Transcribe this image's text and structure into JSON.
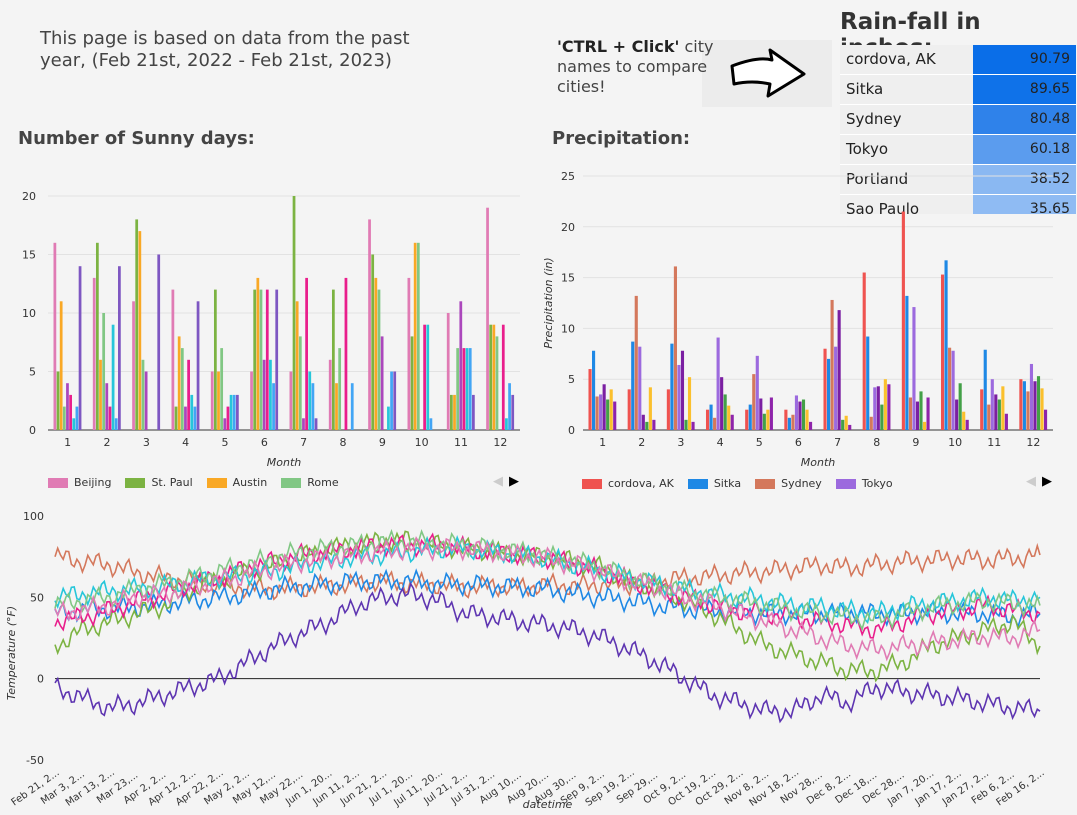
{
  "intro_text": "This page is based on data from the past year, (Feb 21st, 2022 - Feb 21st, 2023)",
  "hint": {
    "bold": "'CTRL + Click'",
    "rest": " city names to compare cities!"
  },
  "rainfall": {
    "title": "Rain-fall in inches:",
    "rows": [
      {
        "city": "cordova, AK",
        "value": "90.79",
        "color": "#0a6ee8"
      },
      {
        "city": "Sitka",
        "value": "89.65",
        "color": "#0f72e9"
      },
      {
        "city": "Sydney",
        "value": "80.48",
        "color": "#2f82ea"
      },
      {
        "city": "Tokyo",
        "value": "60.18",
        "color": "#5b9cee"
      },
      {
        "city": "Portland",
        "value": "38.52",
        "color": "#8ab8f2"
      },
      {
        "city": "Sao Paulo",
        "value": "35.65",
        "color": "#8fbbf3"
      }
    ]
  },
  "sunny": {
    "title": "Number of Sunny days:"
  },
  "precip": {
    "title": "Precipitation:"
  },
  "legend_pager": {
    "prev": "◀",
    "next": "▶"
  },
  "chart_data": [
    {
      "type": "bar",
      "title": "Number of Sunny days:",
      "xlabel": "Month",
      "ylabel": "",
      "ylim": [
        0,
        20
      ],
      "yticks": [
        0,
        5,
        10,
        15,
        20
      ],
      "categories": [
        "1",
        "2",
        "3",
        "4",
        "5",
        "6",
        "7",
        "8",
        "9",
        "10",
        "11",
        "12"
      ],
      "series": [
        {
          "name": "Beijing",
          "color": "#e07bb4",
          "values": [
            16,
            13,
            11,
            12,
            5,
            5,
            5,
            6,
            18,
            13,
            10,
            19
          ]
        },
        {
          "name": "St. Paul",
          "color": "#7cb342",
          "values": [
            5,
            16,
            18,
            2,
            12,
            12,
            20,
            12,
            15,
            8,
            3,
            9
          ]
        },
        {
          "name": "Austin",
          "color": "#f9a825",
          "values": [
            11,
            6,
            17,
            8,
            5,
            13,
            11,
            4,
            13,
            16,
            3,
            9
          ]
        },
        {
          "name": "Rome",
          "color": "#81c784",
          "values": [
            2,
            10,
            6,
            7,
            7,
            12,
            8,
            7,
            12,
            16,
            7,
            8
          ]
        },
        {
          "name": "",
          "color": "#ab47bc",
          "values": [
            4,
            4,
            5,
            2,
            1,
            6,
            1,
            0,
            8,
            0,
            11,
            0
          ]
        },
        {
          "name": "",
          "color": "#e91e8c",
          "values": [
            3,
            2,
            0,
            6,
            2,
            12,
            13,
            13,
            0,
            9,
            7,
            9
          ]
        },
        {
          "name": "",
          "color": "#26c6da",
          "values": [
            1,
            9,
            0,
            3,
            3,
            6,
            5,
            0,
            2,
            9,
            7,
            1
          ]
        },
        {
          "name": "",
          "color": "#42a5f5",
          "values": [
            2,
            1,
            0,
            2,
            3,
            4,
            4,
            4,
            5,
            1,
            7,
            4
          ]
        },
        {
          "name": "",
          "color": "#7e57c2",
          "values": [
            14,
            14,
            15,
            11,
            3,
            12,
            1,
            0,
            5,
            0,
            3,
            3
          ]
        }
      ]
    },
    {
      "type": "bar",
      "title": "Precipitation:",
      "xlabel": "Month",
      "ylabel": "Precipitation (in)",
      "ylim": [
        0,
        25
      ],
      "yticks": [
        0,
        5,
        10,
        15,
        20,
        25
      ],
      "categories": [
        "1",
        "2",
        "3",
        "4",
        "5",
        "6",
        "7",
        "8",
        "9",
        "10",
        "11",
        "12"
      ],
      "series": [
        {
          "name": "cordova, AK",
          "color": "#ef5350",
          "values": [
            6,
            4,
            4,
            2,
            2,
            2,
            8,
            15.5,
            21.5,
            15.3,
            4,
            5
          ]
        },
        {
          "name": "Sitka",
          "color": "#1e88e5",
          "values": [
            7.8,
            8.7,
            8.5,
            2.5,
            2.5,
            1.2,
            7,
            9.2,
            13.2,
            16.7,
            7.9,
            4.8
          ]
        },
        {
          "name": "Sydney",
          "color": "#d4785c",
          "values": [
            3.3,
            13.2,
            16.1,
            1.2,
            5.5,
            1.5,
            12.8,
            1.3,
            3.2,
            8.1,
            2.5,
            3.8
          ]
        },
        {
          "name": "Tokyo",
          "color": "#9c6ade",
          "values": [
            3.5,
            8.2,
            6.4,
            9.1,
            7.3,
            3.4,
            8.2,
            4.2,
            12.1,
            7.8,
            5,
            6.5
          ]
        },
        {
          "name": "",
          "color": "#7b1fa2",
          "values": [
            4.5,
            1.5,
            7.8,
            5.2,
            3.1,
            2.8,
            11.8,
            4.3,
            2.8,
            3,
            3.5,
            4.8
          ]
        },
        {
          "name": "",
          "color": "#43a047",
          "values": [
            3,
            0.8,
            1,
            3.5,
            1.6,
            3,
            1,
            2.5,
            3.8,
            4.6,
            3,
            5.3
          ]
        },
        {
          "name": "",
          "color": "#fbc02d",
          "values": [
            4,
            4.2,
            5.2,
            2.4,
            2,
            2,
            1.4,
            5,
            0.8,
            1.8,
            4.3,
            4.1
          ]
        },
        {
          "name": "",
          "color": "#8e24aa",
          "values": [
            2.8,
            1,
            0.8,
            1.5,
            3.2,
            0.8,
            0.5,
            4.5,
            3.2,
            1,
            1.6,
            2
          ]
        }
      ]
    },
    {
      "type": "line",
      "xlabel": "datetime",
      "ylabel": "Temperature (°F)",
      "ylim": [
        -50,
        100
      ],
      "yticks": [
        -50,
        0,
        50,
        100
      ],
      "x": [
        "Feb 21, 2...",
        "Mar 3, 2...",
        "Mar 13, 2...",
        "Mar 23,...",
        "Apr 2, 2...",
        "Apr 12, 2...",
        "Apr 22, 2...",
        "May 2, 2...",
        "May 12,...",
        "May 22,...",
        "Jun 1, 20...",
        "Jun 11, 2...",
        "Jun 21, 2...",
        "Jul 1, 20...",
        "Jul 11, 20...",
        "Jul 21, 2...",
        "Jul 31, 2...",
        "Aug 10,...",
        "Aug 20,...",
        "Aug 30,...",
        "Sep 9, 2...",
        "Sep 19, 2...",
        "Sep 29,...",
        "Oct 9, 2...",
        "Oct 19, 2...",
        "Oct 29, 2...",
        "Nov 8, 2...",
        "Nov 18, 2...",
        "Nov 28,...",
        "Dec 8, 2...",
        "Dec 18,...",
        "Dec 28,...",
        "Jan 7, 20...",
        "Jan 17, 2...",
        "Jan 27, 2...",
        "Feb 6, 2...",
        "Feb 16, 2..."
      ],
      "series": [
        {
          "name": "",
          "color": "#d4785c",
          "values": [
            75,
            72,
            70,
            65,
            62,
            60,
            57,
            56,
            55,
            56,
            57,
            58,
            60,
            58,
            58,
            56,
            57,
            56,
            58,
            57,
            58,
            58,
            60,
            62,
            63,
            65,
            66,
            68,
            70,
            68,
            70,
            72,
            73,
            74,
            73,
            74,
            76
          ]
        },
        {
          "name": "",
          "color": "#1e88e5",
          "values": [
            40,
            42,
            43,
            44,
            46,
            48,
            50,
            52,
            55,
            57,
            58,
            60,
            60,
            60,
            58,
            58,
            57,
            56,
            55,
            52,
            50,
            48,
            45,
            43,
            42,
            41,
            40,
            40,
            40,
            41,
            40,
            40,
            41,
            40,
            40,
            38,
            40
          ]
        },
        {
          "name": "",
          "color": "#5e35b1",
          "values": [
            -5,
            -12,
            -18,
            -15,
            -10,
            -5,
            0,
            10,
            20,
            28,
            35,
            45,
            50,
            52,
            48,
            40,
            38,
            35,
            33,
            30,
            25,
            18,
            10,
            0,
            -10,
            -15,
            -20,
            -20,
            -10,
            -15,
            -5,
            -8,
            -10,
            -12,
            -15,
            -18,
            -20
          ]
        },
        {
          "name": "",
          "color": "#7cb342",
          "values": [
            20,
            30,
            35,
            40,
            45,
            55,
            60,
            65,
            70,
            75,
            80,
            82,
            85,
            85,
            82,
            80,
            78,
            76,
            75,
            72,
            68,
            60,
            55,
            48,
            40,
            30,
            20,
            15,
            10,
            5,
            5,
            10,
            20,
            25,
            30,
            35,
            20
          ]
        },
        {
          "name": "",
          "color": "#e91e8c",
          "values": [
            35,
            38,
            42,
            48,
            52,
            58,
            62,
            68,
            72,
            76,
            78,
            80,
            82,
            82,
            82,
            80,
            78,
            76,
            74,
            70,
            66,
            60,
            55,
            50,
            46,
            42,
            40,
            38,
            35,
            33,
            30,
            35,
            40,
            42,
            45,
            42,
            40
          ]
        },
        {
          "name": "",
          "color": "#26c6da",
          "values": [
            50,
            52,
            54,
            55,
            57,
            60,
            62,
            64,
            66,
            70,
            72,
            75,
            76,
            78,
            80,
            80,
            78,
            76,
            74,
            70,
            66,
            62,
            58,
            55,
            52,
            50,
            48,
            45,
            44,
            42,
            40,
            44,
            46,
            48,
            50,
            48,
            50
          ]
        },
        {
          "name": "",
          "color": "#81c784",
          "values": [
            45,
            48,
            50,
            55,
            58,
            62,
            66,
            70,
            74,
            78,
            80,
            82,
            84,
            84,
            83,
            82,
            80,
            78,
            75,
            72,
            68,
            62,
            58,
            54,
            50,
            48,
            45,
            42,
            40,
            38,
            36,
            40,
            44,
            46,
            48,
            46,
            45
          ]
        },
        {
          "name": "",
          "color": "#e07bb4",
          "values": [
            40,
            42,
            45,
            50,
            52,
            56,
            60,
            64,
            68,
            72,
            74,
            76,
            78,
            80,
            80,
            80,
            78,
            76,
            74,
            70,
            66,
            60,
            56,
            50,
            46,
            40,
            35,
            30,
            25,
            20,
            18,
            20,
            22,
            24,
            26,
            25,
            30
          ]
        }
      ]
    }
  ]
}
